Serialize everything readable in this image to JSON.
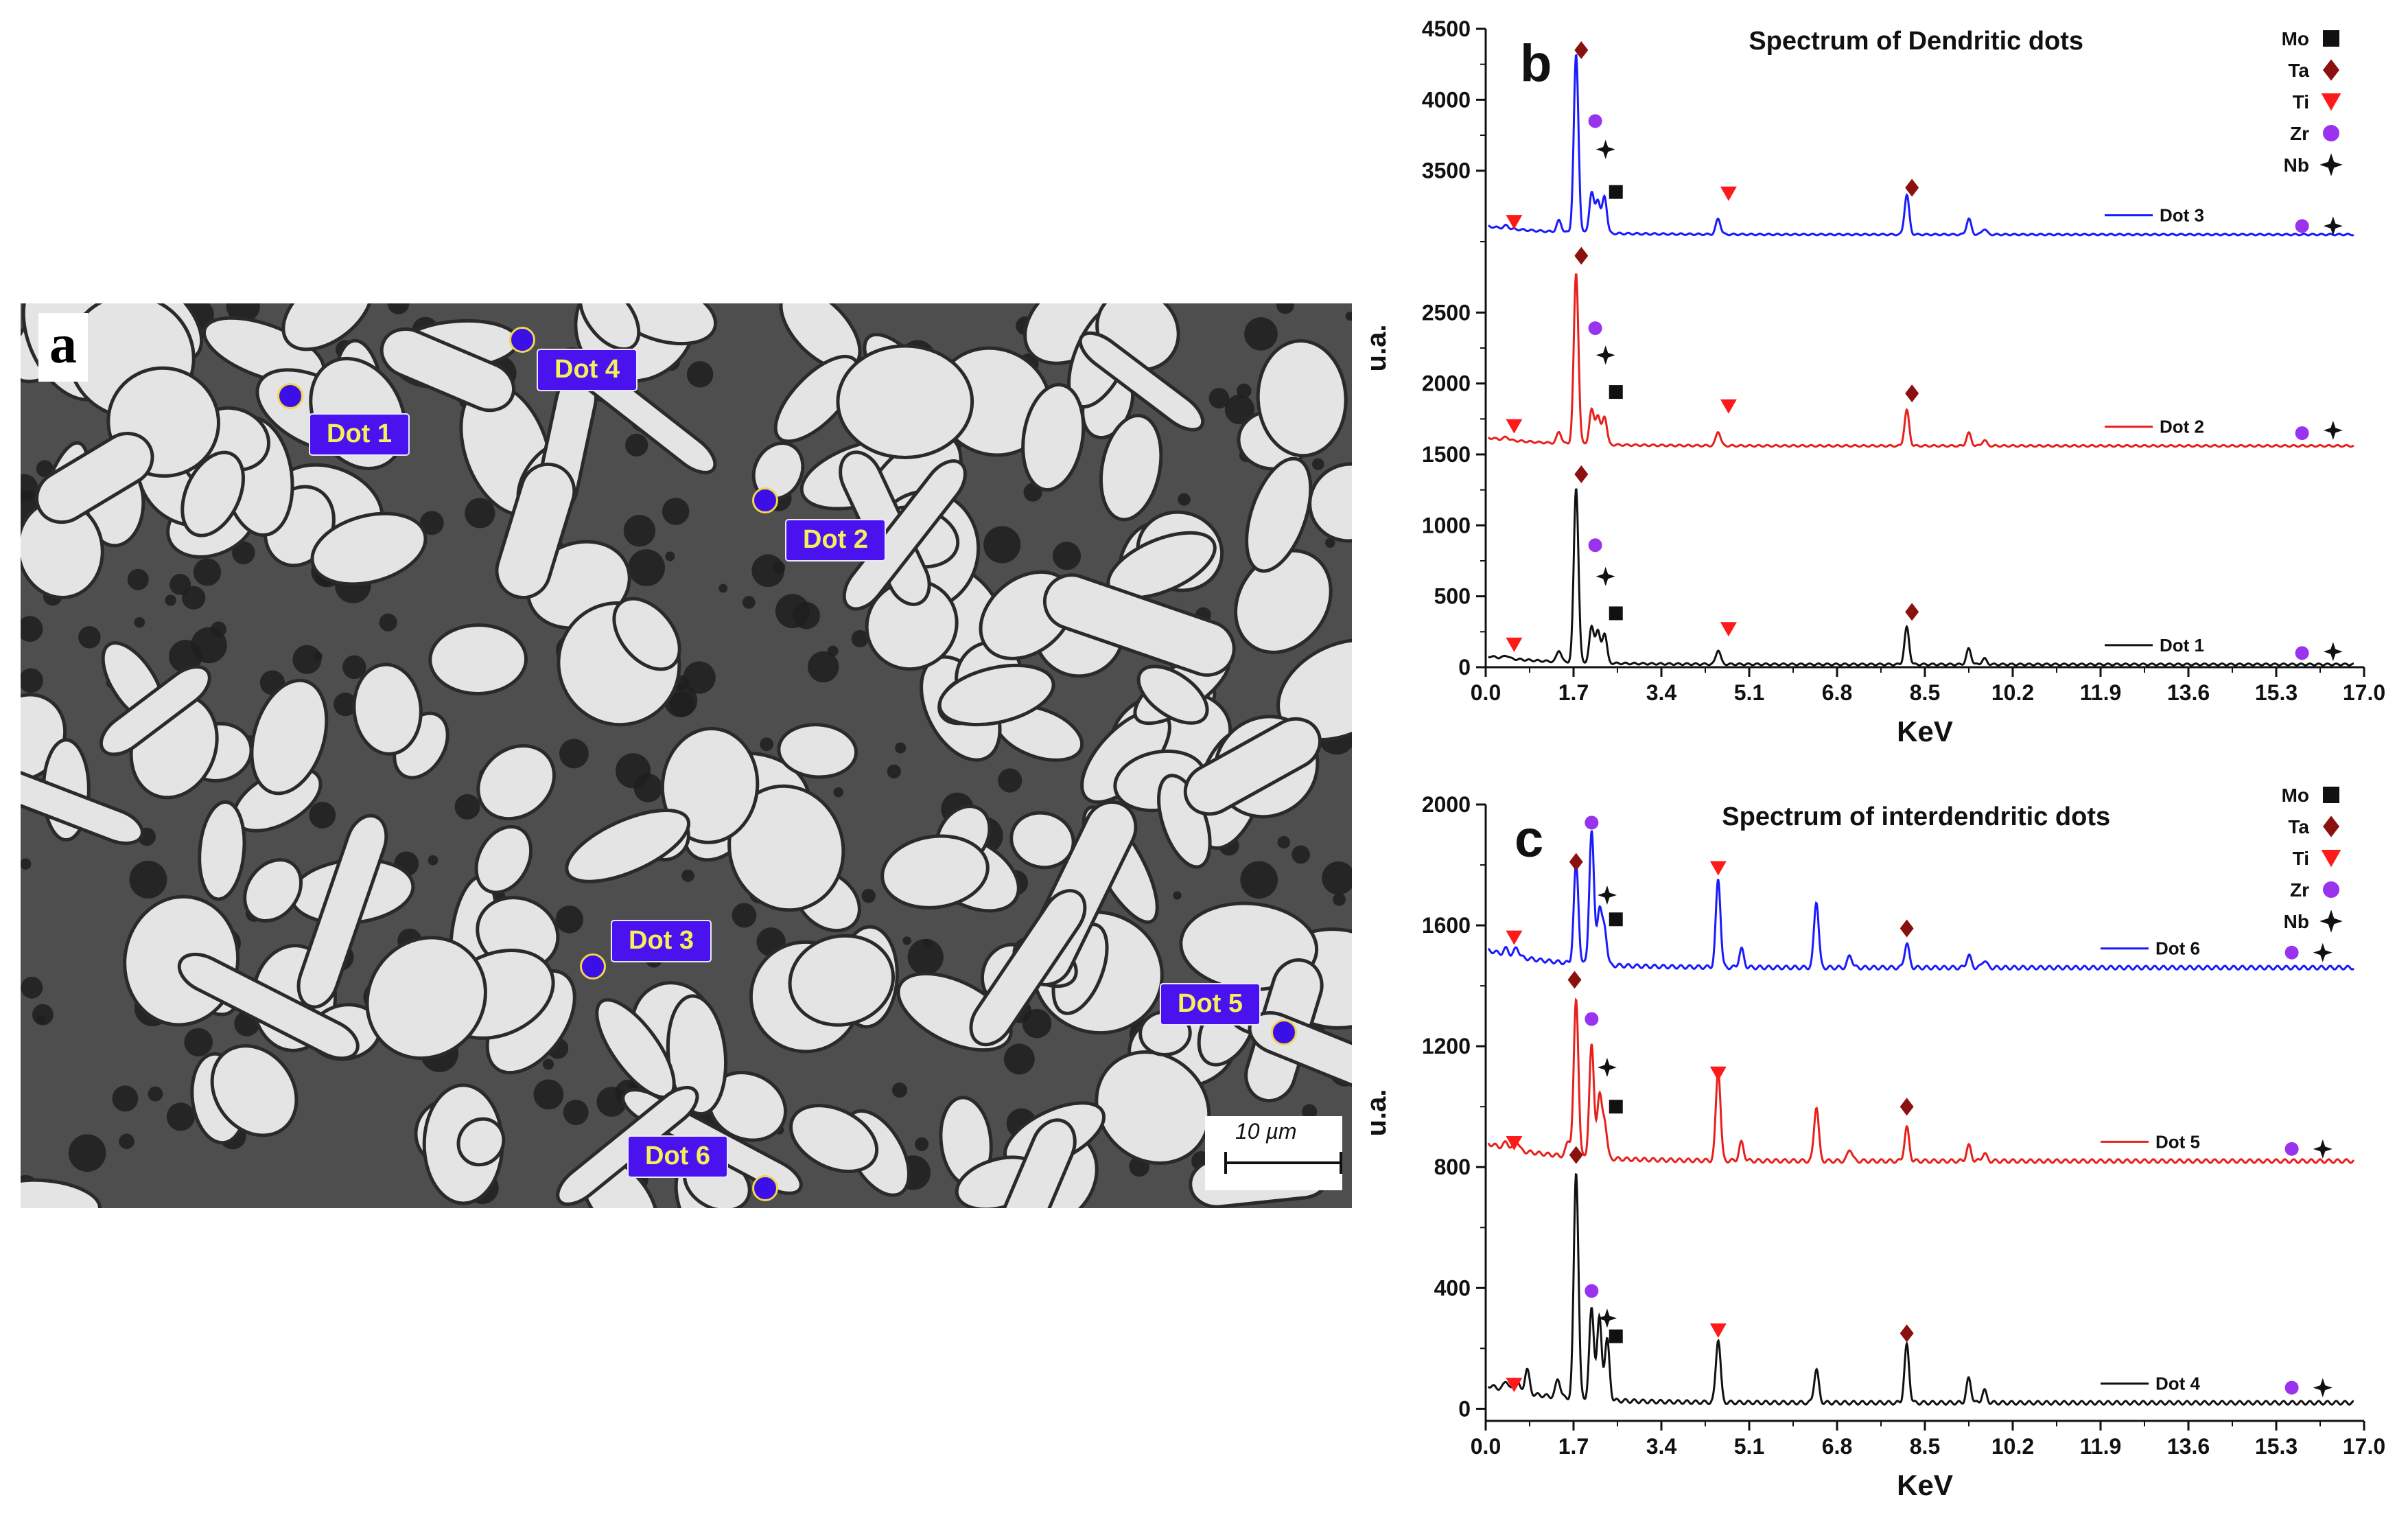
{
  "panel_a": {
    "letter": "a",
    "scale_label": "10 µm",
    "dots": [
      {
        "label": "Dot 1"
      },
      {
        "label": "Dot 2"
      },
      {
        "label": "Dot 3"
      },
      {
        "label": "Dot 4"
      },
      {
        "label": "Dot 5"
      },
      {
        "label": "Dot 6"
      }
    ]
  },
  "chart_data": [
    {
      "panel": "b",
      "type": "line",
      "title": "Spectrum of Dendritic dots",
      "xlabel": "KeV",
      "ylabel": "u.a.",
      "xlim": [
        0,
        17
      ],
      "ylim": [
        0,
        4500
      ],
      "xticks": [
        "0.0",
        "1.7",
        "3.4",
        "5.1",
        "6.8",
        "8.5",
        "10.2",
        "11.9",
        "13.6",
        "15.3",
        "17.0"
      ],
      "yticks": [
        {
          "value": 0,
          "label": "0"
        },
        {
          "value": 500,
          "label": "500"
        },
        {
          "value": 1000,
          "label": "1000"
        },
        {
          "value": 1500,
          "label": "1500"
        },
        {
          "value": 2000,
          "label": "2000"
        },
        {
          "value": 2500,
          "label": "2500"
        },
        {
          "value": 3500,
          "label": "3500"
        },
        {
          "value": 4000,
          "label": "4000"
        },
        {
          "value": 4500,
          "label": "4500"
        }
      ],
      "legend_elements": [
        "Mo",
        "Ta",
        "Ti",
        "Zr",
        "Nb"
      ],
      "series": [
        {
          "name": "Dot 3",
          "color": "#1a1aff",
          "baseline": 3050,
          "peaks": [
            [
              0.4,
              20
            ],
            [
              1.42,
              80
            ],
            [
              1.75,
              1250
            ],
            [
              2.05,
              280
            ],
            [
              2.17,
              230
            ],
            [
              2.3,
              260
            ],
            [
              4.5,
              110
            ],
            [
              8.15,
              280
            ],
            [
              9.35,
              110
            ],
            [
              9.65,
              40
            ]
          ],
          "markers": [
            [
              "Ti",
              0.55,
              3140
            ],
            [
              "Ta",
              1.85,
              4350
            ],
            [
              "Zr",
              2.12,
              3850
            ],
            [
              "Nb",
              2.32,
              3650
            ],
            [
              "Mo",
              2.52,
              3350
            ],
            [
              "Ti",
              4.7,
              3340
            ],
            [
              "Ta",
              8.25,
              3380
            ],
            [
              "Zr",
              15.8,
              3110
            ],
            [
              "Nb",
              16.4,
              3110
            ]
          ]
        },
        {
          "name": "Dot 2",
          "color": "#e8201c",
          "baseline": 1560,
          "peaks": [
            [
              0.4,
              20
            ],
            [
              1.42,
              80
            ],
            [
              1.75,
              1200
            ],
            [
              2.05,
              240
            ],
            [
              2.17,
              200
            ],
            [
              2.3,
              200
            ],
            [
              4.5,
              100
            ],
            [
              8.15,
              250
            ],
            [
              9.35,
              90
            ],
            [
              9.65,
              40
            ]
          ],
          "markers": [
            [
              "Ti",
              0.55,
              1700
            ],
            [
              "Ta",
              1.85,
              2900
            ],
            [
              "Zr",
              2.12,
              2390
            ],
            [
              "Nb",
              2.32,
              2200
            ],
            [
              "Mo",
              2.52,
              1940
            ],
            [
              "Ti",
              4.7,
              1840
            ],
            [
              "Ta",
              8.25,
              1930
            ],
            [
              "Zr",
              15.8,
              1650
            ],
            [
              "Nb",
              16.4,
              1670
            ]
          ]
        },
        {
          "name": "Dot 1",
          "color": "#111111",
          "baseline": 20,
          "peaks": [
            [
              0.4,
              20
            ],
            [
              1.42,
              80
            ],
            [
              1.75,
              1230
            ],
            [
              2.05,
              250
            ],
            [
              2.17,
              220
            ],
            [
              2.3,
              210
            ],
            [
              4.5,
              100
            ],
            [
              8.15,
              260
            ],
            [
              9.35,
              110
            ],
            [
              9.65,
              40
            ]
          ],
          "markers": [
            [
              "Ti",
              0.55,
              160
            ],
            [
              "Ta",
              1.85,
              1360
            ],
            [
              "Zr",
              2.12,
              860
            ],
            [
              "Nb",
              2.32,
              640
            ],
            [
              "Mo",
              2.52,
              380
            ],
            [
              "Ti",
              4.7,
              270
            ],
            [
              "Ta",
              8.25,
              390
            ],
            [
              "Zr",
              15.8,
              100
            ],
            [
              "Nb",
              16.4,
              110
            ]
          ]
        }
      ]
    },
    {
      "panel": "c",
      "type": "line",
      "title": "Spectrum of interdendritic dots",
      "xlabel": "KeV",
      "ylabel": "u.a.",
      "xlim": [
        0,
        17
      ],
      "ylim": [
        -40,
        2000
      ],
      "xticks": [
        "0.0",
        "1.7",
        "3.4",
        "5.1",
        "6.8",
        "8.5",
        "10.2",
        "11.9",
        "13.6",
        "15.3",
        "17.0"
      ],
      "yticks": [
        {
          "value": 0,
          "label": "0"
        },
        {
          "value": 400,
          "label": "400"
        },
        {
          "value": 800,
          "label": "800"
        },
        {
          "value": 1200,
          "label": "1200"
        },
        {
          "value": 1600,
          "label": "1600"
        },
        {
          "value": 2000,
          "label": "2000"
        }
      ],
      "legend_elements": [
        "Mo",
        "Ta",
        "Ti",
        "Zr",
        "Nb"
      ],
      "series": [
        {
          "name": "Dot 6",
          "color": "#1a1aff",
          "baseline": 1460,
          "peaks": [
            [
              0.4,
              20
            ],
            [
              0.6,
              30
            ],
            [
              1.75,
              330
            ],
            [
              2.05,
              440
            ],
            [
              2.2,
              180
            ],
            [
              2.3,
              120
            ],
            [
              4.5,
              290
            ],
            [
              4.95,
              60
            ],
            [
              6.4,
              220
            ],
            [
              7.05,
              40
            ],
            [
              8.15,
              80
            ],
            [
              9.35,
              40
            ],
            [
              9.65,
              25
            ]
          ],
          "markers": [
            [
              "Ti",
              0.55,
              1560
            ],
            [
              "Ta",
              1.75,
              1810
            ],
            [
              "Zr",
              2.05,
              1940
            ],
            [
              "Nb",
              2.35,
              1700
            ],
            [
              "Mo",
              2.52,
              1620
            ],
            [
              "Ti",
              4.5,
              1790
            ],
            [
              "Ta",
              8.15,
              1590
            ],
            [
              "Zr",
              15.6,
              1510
            ],
            [
              "Nb",
              16.2,
              1510
            ]
          ]
        },
        {
          "name": "Dot 5",
          "color": "#e8201c",
          "baseline": 820,
          "peaks": [
            [
              0.4,
              20
            ],
            [
              0.6,
              30
            ],
            [
              1.6,
              50
            ],
            [
              1.75,
              520
            ],
            [
              2.05,
              370
            ],
            [
              2.2,
              200
            ],
            [
              2.3,
              120
            ],
            [
              4.5,
              300
            ],
            [
              4.95,
              60
            ],
            [
              6.4,
              180
            ],
            [
              7.05,
              40
            ],
            [
              8.15,
              110
            ],
            [
              9.35,
              50
            ],
            [
              9.65,
              25
            ]
          ],
          "markers": [
            [
              "Ti",
              0.55,
              880
            ],
            [
              "Ta",
              1.72,
              1420
            ],
            [
              "Zr",
              2.05,
              1290
            ],
            [
              "Nb",
              2.35,
              1130
            ],
            [
              "Mo",
              2.52,
              1000
            ],
            [
              "Ti",
              4.5,
              1110
            ],
            [
              "Ta",
              8.15,
              1000
            ],
            [
              "Zr",
              15.6,
              860
            ],
            [
              "Nb",
              16.2,
              860
            ]
          ]
        },
        {
          "name": "Dot 4",
          "color": "#111111",
          "baseline": 20,
          "peaks": [
            [
              0.4,
              30
            ],
            [
              0.6,
              40
            ],
            [
              0.8,
              80
            ],
            [
              1.4,
              60
            ],
            [
              1.75,
              750
            ],
            [
              2.05,
              300
            ],
            [
              2.2,
              270
            ],
            [
              2.35,
              200
            ],
            [
              4.5,
              210
            ],
            [
              6.4,
              110
            ],
            [
              8.15,
              190
            ],
            [
              9.35,
              80
            ],
            [
              9.65,
              40
            ]
          ],
          "markers": [
            [
              "Ti",
              0.55,
              80
            ],
            [
              "Ta",
              1.75,
              840
            ],
            [
              "Zr",
              2.05,
              390
            ],
            [
              "Nb",
              2.35,
              300
            ],
            [
              "Mo",
              2.52,
              240
            ],
            [
              "Ti",
              4.5,
              260
            ],
            [
              "Ta",
              8.15,
              250
            ],
            [
              "Zr",
              15.6,
              70
            ],
            [
              "Nb",
              16.2,
              70
            ]
          ]
        }
      ]
    }
  ]
}
